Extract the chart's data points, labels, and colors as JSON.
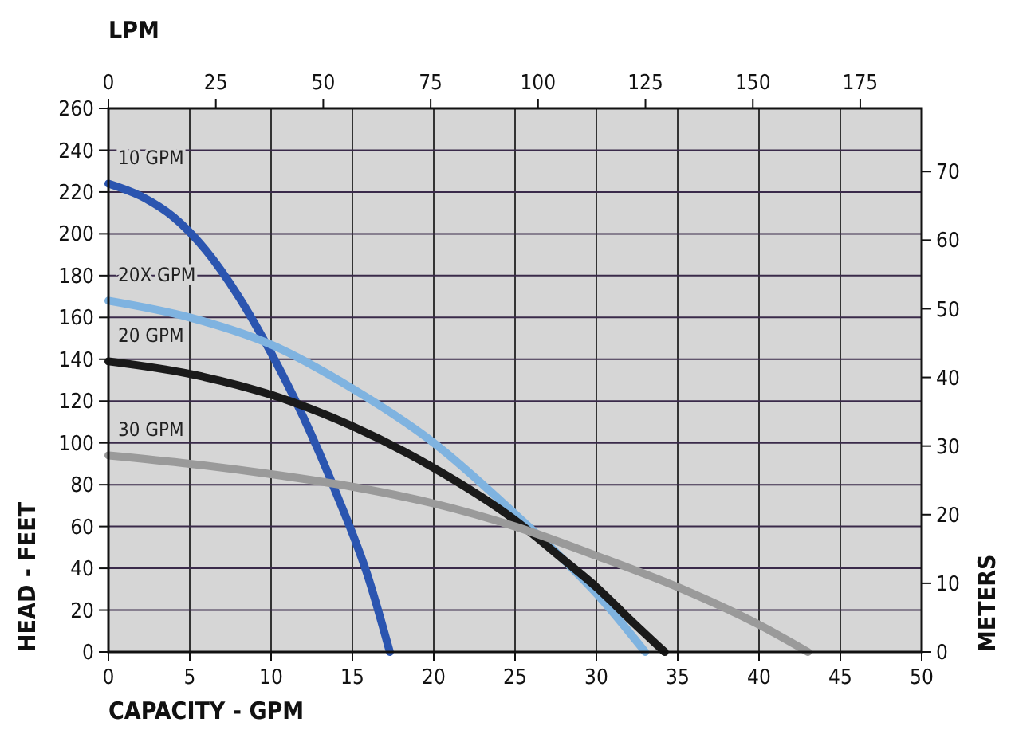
{
  "chart_data": {
    "type": "line",
    "xlabel": "CAPACITY - GPM",
    "ylabel": "HEAD - FEET",
    "x2label": "LPM",
    "y2label": "METERS",
    "xlim": [
      0,
      50
    ],
    "xticks": [
      0,
      5,
      10,
      15,
      20,
      25,
      30,
      35,
      40,
      45,
      50
    ],
    "ylim": [
      0,
      260
    ],
    "yticks": [
      0,
      20,
      40,
      60,
      80,
      100,
      120,
      140,
      160,
      180,
      200,
      220,
      240,
      260
    ],
    "x2lim": [
      0,
      189.3
    ],
    "x2ticks": [
      0,
      25,
      50,
      75,
      100,
      125,
      150,
      175
    ],
    "y2lim": [
      0,
      79.2
    ],
    "y2ticks": [
      0,
      10,
      20,
      30,
      40,
      50,
      60,
      70
    ],
    "grid": true,
    "marker": "none",
    "line_style": "solid",
    "series": [
      {
        "name": "10 GPM",
        "color": "#2b55b0",
        "x": [
          0,
          2,
          4,
          6,
          8,
          10,
          12,
          14,
          16,
          17.3
        ],
        "values": [
          224,
          218,
          208,
          192,
          170,
          143,
          112,
          76,
          35,
          0
        ]
      },
      {
        "name": "20X GPM",
        "color": "#7fb3e0",
        "x": [
          0,
          5,
          10,
          15,
          20,
          25,
          28,
          30,
          33
        ],
        "values": [
          168,
          160,
          147,
          126,
          100,
          66,
          44,
          28,
          0
        ]
      },
      {
        "name": "20 GPM",
        "color": "#1a1a1a",
        "x": [
          0,
          5,
          10,
          15,
          20,
          25,
          28,
          30,
          32,
          34.2
        ],
        "values": [
          139,
          133,
          123,
          108,
          88,
          63,
          44,
          31,
          16,
          0
        ]
      },
      {
        "name": "30 GPM",
        "color": "#9a9a9a",
        "x": [
          0,
          5,
          10,
          15,
          20,
          25,
          30,
          35,
          40,
          43
        ],
        "values": [
          94,
          90,
          85,
          79,
          71,
          60,
          46,
          31,
          13,
          0
        ]
      }
    ]
  }
}
